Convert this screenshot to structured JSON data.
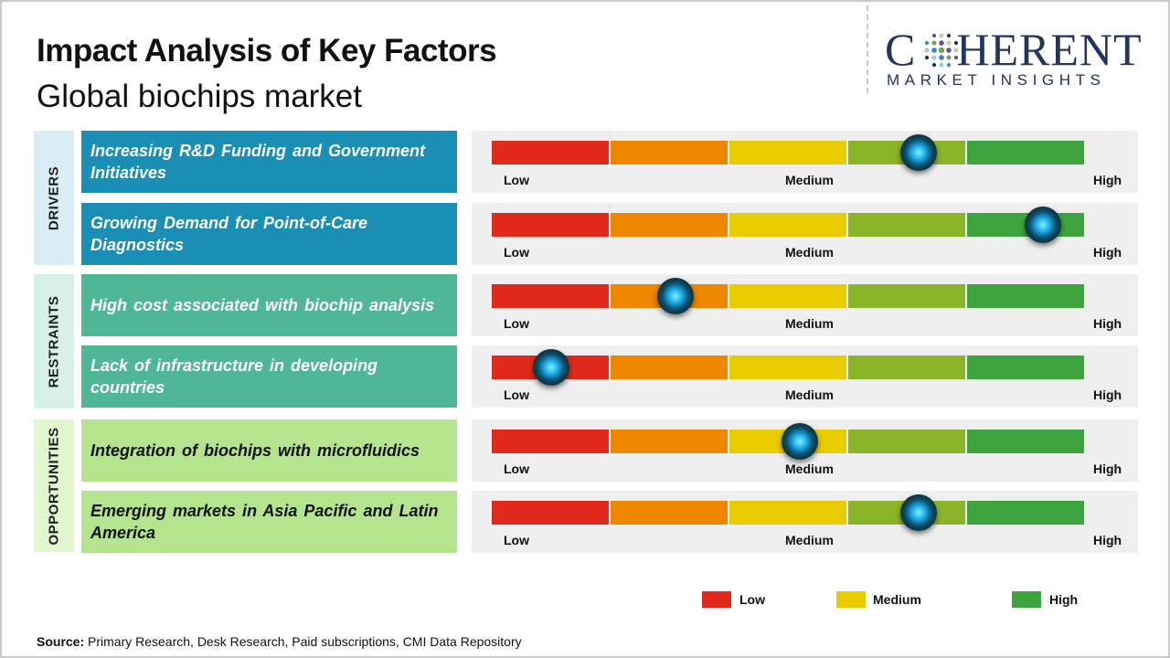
{
  "header": {
    "title": "Impact Analysis of Key Factors",
    "subtitle": "Global biochips market"
  },
  "logo": {
    "main": "COHERENT",
    "sub": "MARKET INSIGHTS"
  },
  "colors": {
    "scale_low": "#e0281c",
    "scale_low_medium": "#ee8600",
    "scale_medium": "#e9cc00",
    "scale_medium_high": "#8cb428",
    "scale_high": "#3ea53e",
    "drivers_bg": "#d8edf6",
    "drivers_factor": "#1a8eb4",
    "restraints_bg": "#d8f1e8",
    "restraints_factor": "#4fb698",
    "opportunities_bg": "#e1f5cf",
    "opportunities_factor": "#b4e48e"
  },
  "chart_data": {
    "type": "table",
    "scale": [
      "Low",
      "Medium",
      "High"
    ],
    "categories": [
      {
        "name": "DRIVERS",
        "factors": [
          {
            "label": "Increasing R&D Funding and Government Initiatives",
            "impact": 0.72
          },
          {
            "label": "Growing Demand for Point-of-Care Diagnostics",
            "impact": 0.93
          }
        ]
      },
      {
        "name": "RESTRAINTS",
        "factors": [
          {
            "label": "High cost associated with biochip analysis",
            "impact": 0.31
          },
          {
            "label": "Lack of infrastructure in developing countries",
            "impact": 0.1
          }
        ]
      },
      {
        "name": "OPPORTUNITIES",
        "factors": [
          {
            "label": "Integration of biochips with microfluidics",
            "impact": 0.52
          },
          {
            "label": "Emerging markets in Asia Pacific and Latin America",
            "impact": 0.72
          }
        ]
      }
    ],
    "legend": [
      "Low",
      "Medium",
      "High"
    ]
  },
  "source": {
    "label": "Source:",
    "text": " Primary Research, Desk Research, Paid subscriptions, CMI Data Repository"
  }
}
